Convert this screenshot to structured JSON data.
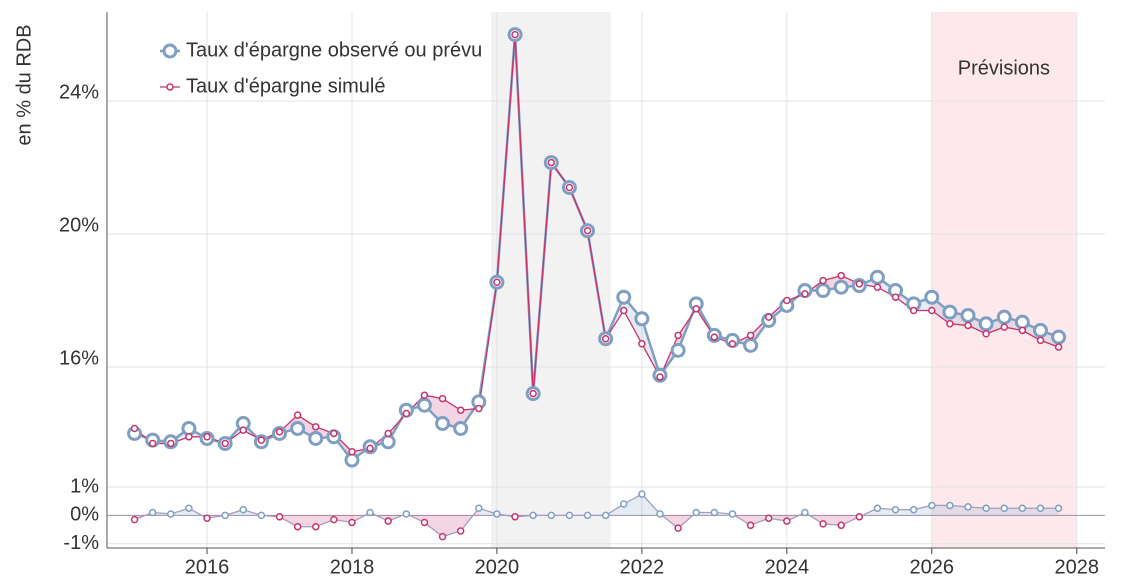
{
  "chart_data": [
    {
      "type": "line",
      "ylabel": "en % du RDB",
      "x": [
        2015,
        2015.25,
        2015.5,
        2015.75,
        2016,
        2016.25,
        2016.5,
        2016.75,
        2017,
        2017.25,
        2017.5,
        2017.75,
        2018,
        2018.25,
        2018.5,
        2018.75,
        2019,
        2019.25,
        2019.5,
        2019.75,
        2020,
        2020.25,
        2020.5,
        2020.75,
        2021,
        2021.25,
        2021.5,
        2021.75,
        2022,
        2022.25,
        2022.5,
        2022.75,
        2023,
        2023.25,
        2023.5,
        2023.75,
        2024,
        2024.25,
        2024.5,
        2024.75,
        2025,
        2025.25,
        2025.5,
        2025.75,
        2026,
        2026.25,
        2026.5,
        2026.75,
        2027,
        2027.25,
        2027.5,
        2027.75
      ],
      "series": [
        {
          "name": "Taux d'épargne observé ou prévu",
          "color": "#7f9fc2",
          "values": [
            14.0,
            13.8,
            13.75,
            14.15,
            13.85,
            13.7,
            14.3,
            13.75,
            14.0,
            14.15,
            13.85,
            13.9,
            13.2,
            13.6,
            13.75,
            14.7,
            14.85,
            14.3,
            14.15,
            14.95,
            18.55,
            26.0,
            15.2,
            22.15,
            21.4,
            20.1,
            16.85,
            18.1,
            17.45,
            15.75,
            16.5,
            17.9,
            16.95,
            16.8,
            16.65,
            17.4,
            17.85,
            18.3,
            18.3,
            18.4,
            18.45,
            18.7,
            18.3,
            17.9,
            18.1,
            17.65,
            17.55,
            17.3,
            17.5,
            17.35,
            17.1,
            16.9
          ]
        },
        {
          "name": "Taux d'épargne simulé",
          "color": "#c8336e",
          "values": [
            14.15,
            13.7,
            13.7,
            13.9,
            13.9,
            13.7,
            14.1,
            13.8,
            14.05,
            14.55,
            14.2,
            14.0,
            13.45,
            13.55,
            14.0,
            14.6,
            15.15,
            15.05,
            14.7,
            14.75,
            18.55,
            26.0,
            15.2,
            22.15,
            21.4,
            20.1,
            16.85,
            17.7,
            16.7,
            15.7,
            16.95,
            17.75,
            16.9,
            16.7,
            16.95,
            17.5,
            18.0,
            18.2,
            18.6,
            18.75,
            18.5,
            18.4,
            18.1,
            17.7,
            17.7,
            17.3,
            17.25,
            17.0,
            17.2,
            17.1,
            16.8,
            16.6
          ]
        }
      ],
      "xlim": [
        2014.62,
        2028.39
      ],
      "ylim": [
        12.6,
        26.68
      ],
      "yticks": [
        {
          "value": 16,
          "label": "16%"
        },
        {
          "value": 20,
          "label": "20%"
        },
        {
          "value": 24,
          "label": "24%"
        }
      ],
      "regions": [
        {
          "x": [
            2019.92,
            2021.57
          ],
          "color": "#f2f2f2"
        },
        {
          "x": [
            2026,
            2027.99
          ],
          "color": "#fde9eb",
          "label": "Prévisions"
        }
      ],
      "grid": true
    },
    {
      "type": "line",
      "x": [
        2015,
        2015.25,
        2015.5,
        2015.75,
        2016,
        2016.25,
        2016.5,
        2016.75,
        2017,
        2017.25,
        2017.5,
        2017.75,
        2018,
        2018.25,
        2018.5,
        2018.75,
        2019,
        2019.25,
        2019.5,
        2019.75,
        2020,
        2020.25,
        2020.5,
        2020.75,
        2021,
        2021.25,
        2021.5,
        2021.75,
        2022,
        2022.25,
        2022.5,
        2022.75,
        2023,
        2023.25,
        2023.5,
        2023.75,
        2024,
        2024.25,
        2024.5,
        2024.75,
        2025,
        2025.25,
        2025.5,
        2025.75,
        2026,
        2026.25,
        2026.5,
        2026.75,
        2027,
        2027.25,
        2027.5,
        2027.75
      ],
      "values": [
        -0.15,
        0.1,
        0.05,
        0.25,
        -0.1,
        0,
        0.2,
        0,
        -0.05,
        -0.4,
        -0.4,
        -0.15,
        -0.25,
        0.1,
        -0.2,
        0.05,
        -0.25,
        -0.75,
        -0.55,
        0.25,
        0.05,
        -0.05,
        0,
        0,
        0,
        0,
        0,
        0.4,
        0.75,
        0.05,
        -0.45,
        0.1,
        0.1,
        0.05,
        -0.35,
        -0.1,
        -0.2,
        0.1,
        -0.3,
        -0.35,
        -0.05,
        0.25,
        0.2,
        0.2,
        0.35,
        0.35,
        0.3,
        0.25,
        0.25,
        0.25,
        0.25,
        0.25
      ],
      "positive_color": "#7f9fc2",
      "negative_color": "#c8336e",
      "xlim": [
        2014.62,
        2028.39
      ],
      "ylim": [
        -1.15,
        1.0
      ],
      "xticks": [
        2016,
        2018,
        2020,
        2022,
        2024,
        2026,
        2028
      ],
      "yticks": [
        {
          "value": -1,
          "label": "-1%"
        },
        {
          "value": 0,
          "label": "0%"
        },
        {
          "value": 1,
          "label": "1%"
        }
      ],
      "grid": true
    }
  ]
}
